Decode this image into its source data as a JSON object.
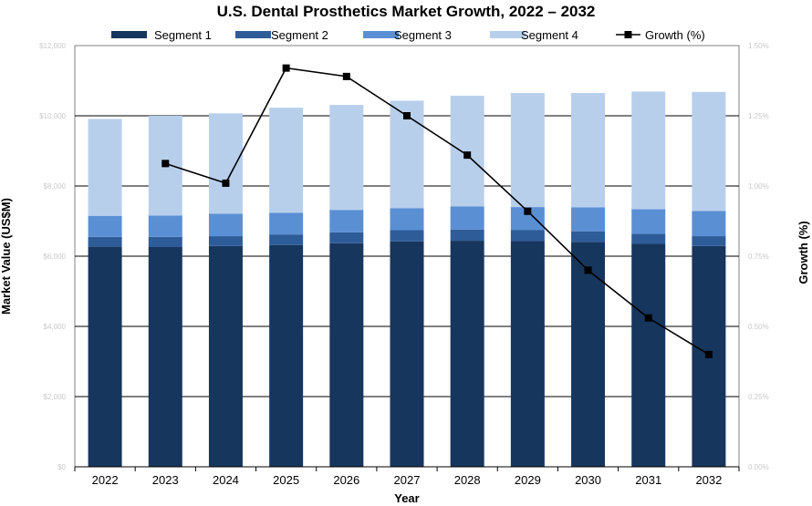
{
  "chart_data": {
    "type": "bar",
    "title": "U.S. Dental Prosthetics Market Growth, 2022 – 2032",
    "xlabel": "Year",
    "ylabel": "Market Value (US$M)",
    "y2label": "Growth (%)",
    "categories": [
      "2022",
      "2023",
      "2024",
      "2025",
      "2026",
      "2027",
      "2028",
      "2029",
      "2030",
      "2031",
      "2032"
    ],
    "ylim": [
      0,
      12000
    ],
    "y_ticks": [
      "$0",
      "$2,000",
      "$4,000",
      "$6,000",
      "$8,000",
      "$10,000",
      "$12,000"
    ],
    "y2lim": [
      0,
      1.5
    ],
    "y2_ticks": [
      "0.00%",
      "0.25%",
      "0.50%",
      "0.75%",
      "1.00%",
      "1.25%",
      "1.50%"
    ],
    "stacked": true,
    "series": [
      {
        "name": "Segment 1",
        "color": "#17365d",
        "values": [
          6270,
          6260,
          6290,
          6320,
          6370,
          6420,
          6440,
          6430,
          6410,
          6350,
          6290
        ]
      },
      {
        "name": "Segment 2",
        "color": "#2e5c99",
        "values": [
          280,
          290,
          280,
          300,
          310,
          320,
          320,
          320,
          300,
          290,
          280
        ]
      },
      {
        "name": "Segment 3",
        "color": "#5b8fd4",
        "values": [
          600,
          610,
          640,
          620,
          640,
          630,
          660,
          650,
          680,
          700,
          720
        ]
      },
      {
        "name": "Segment 4",
        "color": "#b8cfec",
        "values": [
          2760,
          2840,
          2860,
          2990,
          2990,
          3060,
          3150,
          3250,
          3260,
          3350,
          3390
        ]
      }
    ],
    "line_series": {
      "name": "Growth (%)",
      "axis": "right",
      "color": "#000000",
      "values": [
        null,
        1.08,
        1.01,
        1.42,
        1.39,
        1.25,
        1.11,
        0.91,
        0.7,
        0.53,
        0.4
      ]
    },
    "legend_position": "top",
    "grid": true
  }
}
